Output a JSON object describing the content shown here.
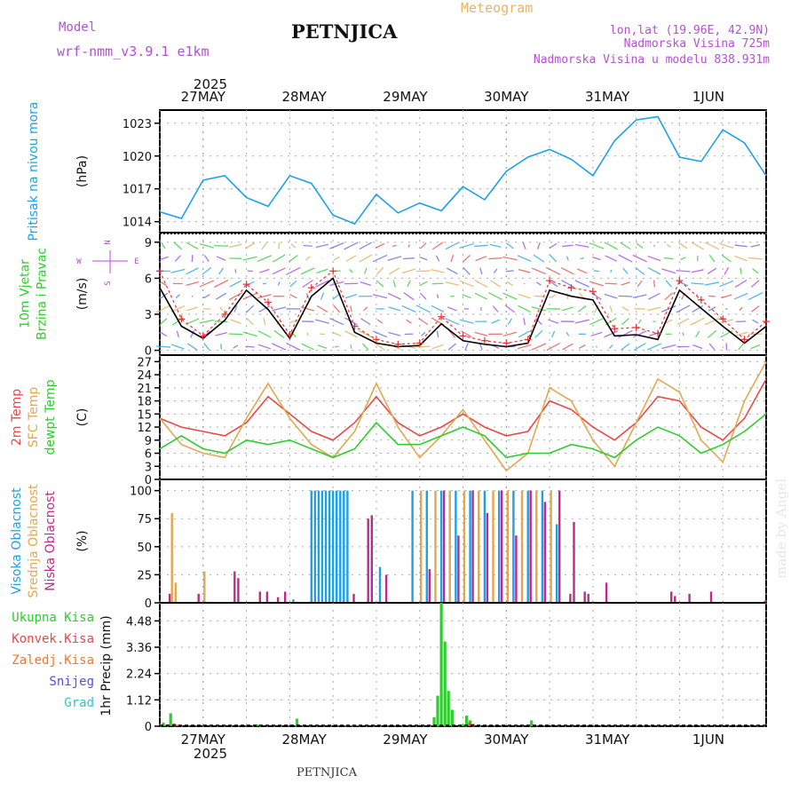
{
  "header": {
    "model_label": "Model",
    "model_name": "wrf-nmm_v3.9.1 e1km",
    "station": "PETNJICA",
    "product": "Meteogram",
    "lonlat": "lon,lat (19.96E, 42.9N)",
    "elevation": "Nadmorska Visina 725m",
    "model_elevation": "Nadmorska Visina u modelu 838.931m"
  },
  "footer": {
    "station": "PETNJICA",
    "credit": "made by Angel"
  },
  "colors": {
    "pressure": "#1ea0e6",
    "wind_speed": "#000000",
    "gust": "#e83232",
    "temp_2m": "#e84848",
    "sfc_temp": "#e0a850",
    "dewpoint": "#2ecc2e",
    "high_cloud": "#1ea0e6",
    "mid_cloud": "#e0a850",
    "low_cloud": "#c0288c",
    "total_precip": "#2ecc2e",
    "conv_precip": "#e84848",
    "frz_precip": "#f07828",
    "snow": "#5050e0",
    "graupel": "#28c8c8",
    "title_purple": "#b450d2",
    "title_orange": "#e8b464"
  },
  "time_axis": {
    "year": "2025",
    "days": [
      "27MAY",
      "28MAY",
      "29MAY",
      "30MAY",
      "31MAY",
      "1JUN"
    ]
  },
  "chart_data": [
    {
      "type": "line",
      "id": "pressure",
      "ylabel_lines": [
        "Pritisak na nivou mora"
      ],
      "unit": "(hPa)",
      "yticks": [
        "1014",
        "1017",
        "1020",
        "1023"
      ],
      "ylim": [
        1013,
        1024.2
      ],
      "x": [
        0,
        6,
        12,
        18,
        24,
        30,
        36,
        42,
        48,
        54,
        60,
        66,
        72,
        78,
        84,
        90,
        96,
        102,
        108,
        114,
        120,
        126,
        132,
        138,
        144,
        150,
        156,
        162,
        168
      ],
      "series": [
        {
          "values": [
            1014.9,
            1014.3,
            1017.8,
            1018.2,
            1016.2,
            1015.4,
            1018.2,
            1017.5,
            1014.6,
            1013.8,
            1016.5,
            1014.8,
            1015.7,
            1015.0,
            1017.2,
            1016.0,
            1018.6,
            1019.9,
            1020.6,
            1019.7,
            1018.2,
            1021.4,
            1023.3,
            1023.6,
            1019.9,
            1019.5,
            1022.4,
            1021.2,
            1018.2
          ]
        }
      ]
    },
    {
      "type": "line",
      "id": "wind",
      "ylabel_lines": [
        "10m Vjetar",
        "Brzina i Pravac"
      ],
      "unit": "(m/s)",
      "yticks": [
        "0",
        "3",
        "6",
        "9"
      ],
      "ylim": [
        -0.4,
        9.8
      ],
      "compass": [
        "N",
        "W",
        "E",
        "S"
      ],
      "x": [
        0,
        6,
        12,
        18,
        24,
        30,
        36,
        42,
        48,
        54,
        60,
        66,
        72,
        78,
        84,
        90,
        96,
        102,
        108,
        114,
        120,
        126,
        132,
        138,
        144,
        150,
        156,
        162,
        168
      ],
      "series": [
        {
          "values": [
            5.2,
            2.0,
            1.0,
            2.5,
            5.0,
            3.4,
            1.0,
            4.5,
            6.0,
            1.5,
            0.6,
            0.3,
            0.4,
            2.2,
            0.8,
            0.5,
            0.3,
            0.6,
            5.0,
            4.5,
            4.2,
            1.2,
            1.3,
            0.9,
            5.0,
            3.5,
            2.0,
            0.6,
            2.0
          ]
        },
        {
          "values": [
            6.6,
            2.6,
            1.2,
            3.0,
            5.5,
            4.0,
            1.3,
            5.2,
            6.6,
            2.0,
            0.9,
            0.5,
            0.6,
            2.8,
            1.2,
            0.8,
            0.6,
            0.9,
            5.8,
            5.2,
            4.9,
            1.8,
            1.9,
            1.4,
            5.8,
            4.2,
            2.6,
            0.9,
            2.4
          ]
        }
      ]
    },
    {
      "type": "line",
      "id": "temperature",
      "ylabel_lines": [
        "2m Temp",
        "SFC Temp",
        "dewpt Temp"
      ],
      "unit": "(C)",
      "yticks": [
        "0",
        "3",
        "6",
        "9",
        "12",
        "15",
        "18",
        "21",
        "24",
        "27"
      ],
      "ylim": [
        0,
        28.5
      ],
      "x": [
        0,
        6,
        12,
        18,
        24,
        30,
        36,
        42,
        48,
        54,
        60,
        66,
        72,
        78,
        84,
        90,
        96,
        102,
        108,
        114,
        120,
        126,
        132,
        138,
        144,
        150,
        156,
        162,
        168
      ],
      "series": [
        {
          "values": [
            14,
            12,
            11,
            10,
            13,
            19,
            15,
            11,
            9,
            13,
            19,
            13,
            10,
            12,
            15,
            12,
            10,
            11,
            18,
            16,
            12,
            9,
            13,
            19,
            18,
            12,
            9,
            14,
            23
          ]
        },
        {
          "values": [
            14,
            8,
            6,
            5,
            14,
            22,
            14,
            8,
            5,
            11,
            22,
            12,
            5,
            10,
            16,
            9,
            2,
            6,
            21,
            18,
            9,
            3,
            13,
            23,
            20,
            9,
            4,
            18,
            27
          ]
        },
        {
          "values": [
            7,
            10,
            7,
            6,
            9,
            8,
            9,
            7,
            5,
            7,
            13,
            8,
            8,
            10,
            12,
            10,
            5,
            6,
            6,
            8,
            7,
            5,
            9,
            12,
            10,
            6,
            8,
            11,
            15
          ]
        }
      ]
    },
    {
      "type": "bar",
      "id": "cloud",
      "ylabel_lines": [
        "Visoka Oblacnost",
        "Srednja Oblacnost",
        "Niska Oblacnost"
      ],
      "unit": "(%)",
      "yticks": [
        "0",
        "25",
        "50",
        "75",
        "100"
      ],
      "ylim": [
        0,
        110
      ],
      "x": [
        2,
        3,
        4,
        10,
        12,
        20,
        21,
        27,
        29,
        32,
        34,
        37,
        42,
        43,
        44,
        45,
        46,
        47,
        48,
        49,
        50,
        51,
        52,
        53,
        57,
        58,
        61,
        62,
        70,
        72,
        74,
        76,
        78,
        80,
        82,
        84,
        86,
        88,
        90,
        92,
        94,
        96,
        98,
        100,
        102,
        104,
        106,
        108,
        110,
        113,
        114,
        117,
        118,
        123,
        141,
        142,
        146,
        152,
        167
      ],
      "series": [
        {
          "name": "high",
          "values": [
            0,
            0,
            0,
            0,
            0,
            0,
            0,
            0,
            0,
            0,
            0,
            3,
            100,
            100,
            100,
            100,
            100,
            100,
            100,
            100,
            100,
            100,
            100,
            0,
            0,
            0,
            32,
            0,
            100,
            0,
            100,
            0,
            100,
            0,
            100,
            0,
            100,
            0,
            100,
            0,
            100,
            0,
            100,
            0,
            100,
            0,
            100,
            0,
            70,
            0,
            0,
            0,
            0,
            0,
            0,
            0,
            0,
            0,
            0
          ]
        },
        {
          "name": "mid",
          "values": [
            0,
            80,
            18,
            0,
            28,
            0,
            0,
            0,
            0,
            0,
            0,
            0,
            0,
            0,
            0,
            0,
            0,
            0,
            0,
            0,
            0,
            0,
            0,
            0,
            0,
            0,
            0,
            0,
            0,
            100,
            0,
            100,
            0,
            100,
            0,
            100,
            0,
            100,
            0,
            100,
            0,
            100,
            0,
            100,
            0,
            100,
            0,
            100,
            0,
            0,
            0,
            0,
            0,
            0,
            0,
            0,
            0,
            0,
            0
          ]
        },
        {
          "name": "low",
          "values": [
            8,
            0,
            0,
            8,
            0,
            28,
            22,
            10,
            10,
            5,
            10,
            0,
            0,
            0,
            0,
            0,
            0,
            0,
            0,
            0,
            0,
            0,
            0,
            8,
            75,
            78,
            0,
            25,
            0,
            0,
            30,
            0,
            100,
            0,
            60,
            0,
            100,
            0,
            80,
            0,
            100,
            0,
            60,
            0,
            100,
            0,
            90,
            0,
            100,
            8,
            72,
            10,
            8,
            18,
            10,
            6,
            8,
            10,
            2
          ]
        }
      ]
    },
    {
      "type": "bar",
      "id": "precip",
      "ylabel_lines": [
        "Ukupna Kisa",
        "Konvek.Kisa",
        "Zaledj.Kisa",
        "Snijeg",
        "Grad"
      ],
      "unit": "1hr Precip (mm)",
      "yticks": [
        "0",
        "1.12",
        "2.24",
        "3.36",
        "4.48"
      ],
      "ylim": [
        0,
        5.25
      ],
      "x": [
        1,
        2,
        3,
        4,
        5,
        27,
        38,
        52,
        54,
        76,
        77,
        78,
        79,
        80,
        81,
        84,
        85,
        86,
        87,
        103
      ],
      "series": [
        {
          "name": "total",
          "values": [
            0.15,
            0.08,
            0.55,
            0.12,
            0.05,
            0.08,
            0.32,
            0.05,
            0.05,
            0.38,
            1.3,
            5.25,
            3.6,
            1.5,
            0.7,
            0.08,
            0.45,
            0.25,
            0.08,
            0.25
          ]
        },
        {
          "name": "conv",
          "values": [
            0.05,
            0.04,
            0.1,
            0.06,
            0,
            0,
            0,
            0.03,
            0.03,
            0,
            0,
            0,
            0,
            0,
            0,
            0,
            0.15,
            0.1,
            0,
            0
          ]
        }
      ]
    }
  ]
}
